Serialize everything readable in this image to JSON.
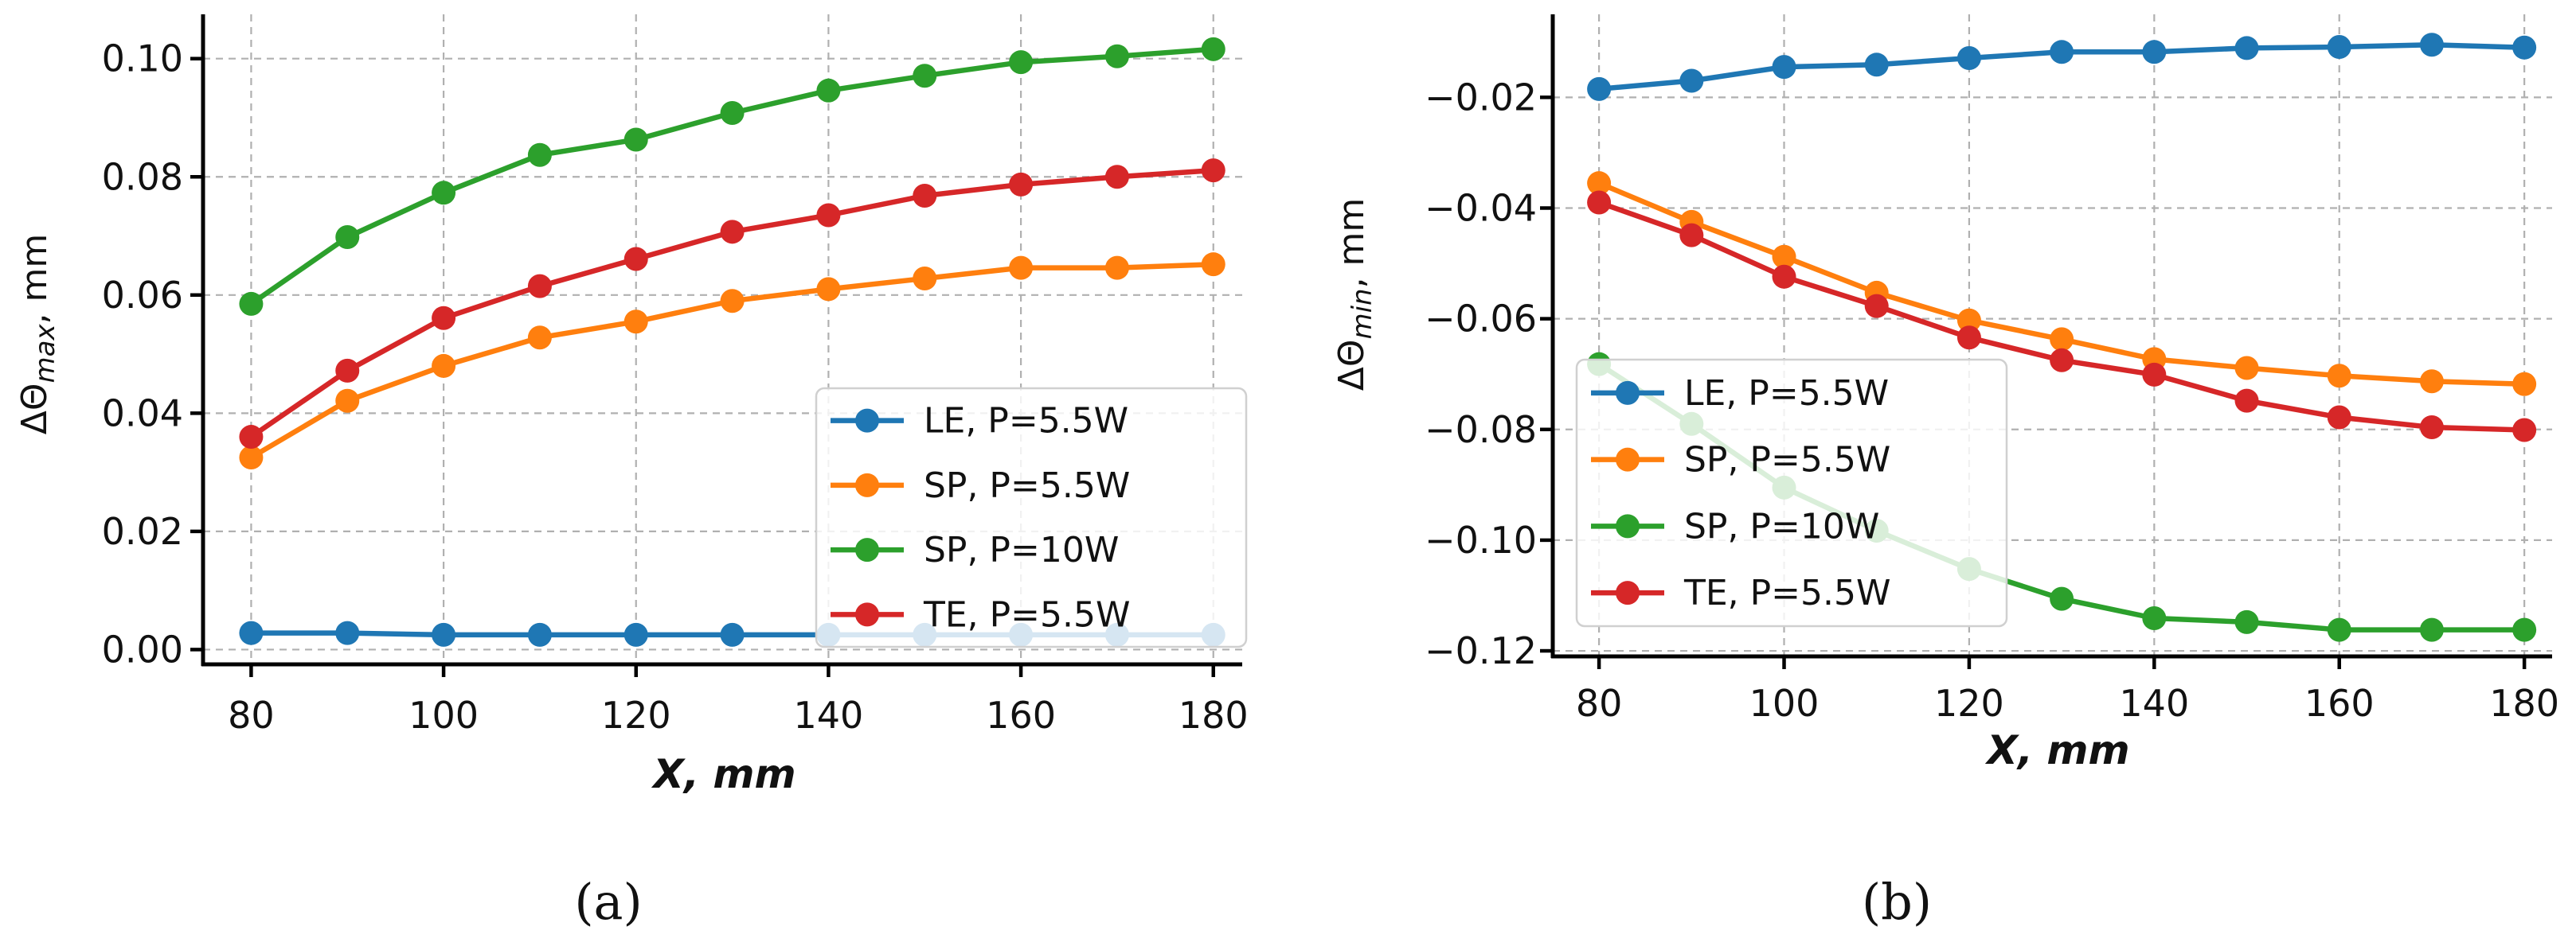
{
  "figure": {
    "panel_labels": [
      "(a)",
      "(b)"
    ]
  },
  "chart_data": [
    {
      "type": "line",
      "panel": "(a)",
      "xlabel": "X, mm",
      "ylabel_prefix": "ΔΘ",
      "ylabel_sub": "max",
      "ylabel_suffix": ", mm",
      "xlim": [
        75,
        183
      ],
      "ylim": [
        -0.0025,
        0.1075
      ],
      "xticks": [
        80,
        100,
        120,
        140,
        160,
        180
      ],
      "xtick_labels": [
        "80",
        "100",
        "120",
        "140",
        "160",
        "180"
      ],
      "yticks": [
        0.0,
        0.02,
        0.04,
        0.06,
        0.08,
        0.1
      ],
      "ytick_labels": [
        "0.00",
        "0.02",
        "0.04",
        "0.06",
        "0.08",
        "0.10"
      ],
      "grid": true,
      "legend_position": "lower-right",
      "x": [
        80,
        90,
        100,
        110,
        120,
        130,
        140,
        150,
        160,
        170,
        180
      ],
      "series": [
        {
          "name": "LE, P=5.5W",
          "color": "#1f77b4",
          "values": [
            0.0028,
            0.0028,
            0.0025,
            0.0025,
            0.0025,
            0.0025,
            0.0025,
            0.0025,
            0.0025,
            0.0025,
            0.0025
          ]
        },
        {
          "name": "SP, P=5.5W",
          "color": "#ff7f0e",
          "values": [
            0.0325,
            0.0421,
            0.048,
            0.0528,
            0.0555,
            0.059,
            0.061,
            0.0628,
            0.0646,
            0.0646,
            0.0652
          ]
        },
        {
          "name": "SP, P=10W",
          "color": "#2ca02c",
          "values": [
            0.0585,
            0.0698,
            0.0773,
            0.0837,
            0.0863,
            0.0908,
            0.0946,
            0.0971,
            0.0994,
            0.1004,
            0.1016
          ]
        },
        {
          "name": "TE, P=5.5W",
          "color": "#d62728",
          "values": [
            0.036,
            0.0472,
            0.0561,
            0.0615,
            0.0661,
            0.0707,
            0.0735,
            0.0768,
            0.0787,
            0.08,
            0.0811
          ]
        }
      ]
    },
    {
      "type": "line",
      "panel": "(b)",
      "xlabel": "X, mm",
      "ylabel_prefix": "ΔΘ",
      "ylabel_sub": "min",
      "ylabel_suffix": ", mm",
      "xlim": [
        75,
        183
      ],
      "ylim": [
        -0.121,
        -0.005
      ],
      "xticks": [
        80,
        100,
        120,
        140,
        160,
        180
      ],
      "xtick_labels": [
        "80",
        "100",
        "120",
        "140",
        "160",
        "180"
      ],
      "yticks": [
        -0.12,
        -0.1,
        -0.08,
        -0.06,
        -0.04,
        -0.02
      ],
      "ytick_labels": [
        "−0.12",
        "−0.10",
        "−0.08",
        "−0.06",
        "−0.04",
        "−0.02"
      ],
      "grid": true,
      "legend_position": "lower-left",
      "x": [
        80,
        90,
        100,
        110,
        120,
        130,
        140,
        150,
        160,
        170,
        180
      ],
      "series": [
        {
          "name": "LE, P=5.5W",
          "color": "#1f77b4",
          "values": [
            -0.0185,
            -0.017,
            -0.0145,
            -0.0141,
            -0.0129,
            -0.0118,
            -0.0118,
            -0.0111,
            -0.0109,
            -0.0105,
            -0.011
          ]
        },
        {
          "name": "SP, P=5.5W",
          "color": "#ff7f0e",
          "values": [
            -0.0355,
            -0.0425,
            -0.0488,
            -0.0553,
            -0.0603,
            -0.0637,
            -0.0673,
            -0.0689,
            -0.0703,
            -0.0713,
            -0.0718
          ]
        },
        {
          "name": "SP, P=10W",
          "color": "#2ca02c",
          "values": [
            -0.0682,
            -0.079,
            -0.0905,
            -0.0983,
            -0.1052,
            -0.1106,
            -0.1141,
            -0.1148,
            -0.1162,
            -0.1162,
            -0.1162
          ]
        },
        {
          "name": "TE, P=5.5W",
          "color": "#d62728",
          "values": [
            -0.039,
            -0.0449,
            -0.0524,
            -0.0577,
            -0.0634,
            -0.0675,
            -0.0701,
            -0.0748,
            -0.0778,
            -0.0796,
            -0.0801
          ]
        }
      ]
    }
  ]
}
